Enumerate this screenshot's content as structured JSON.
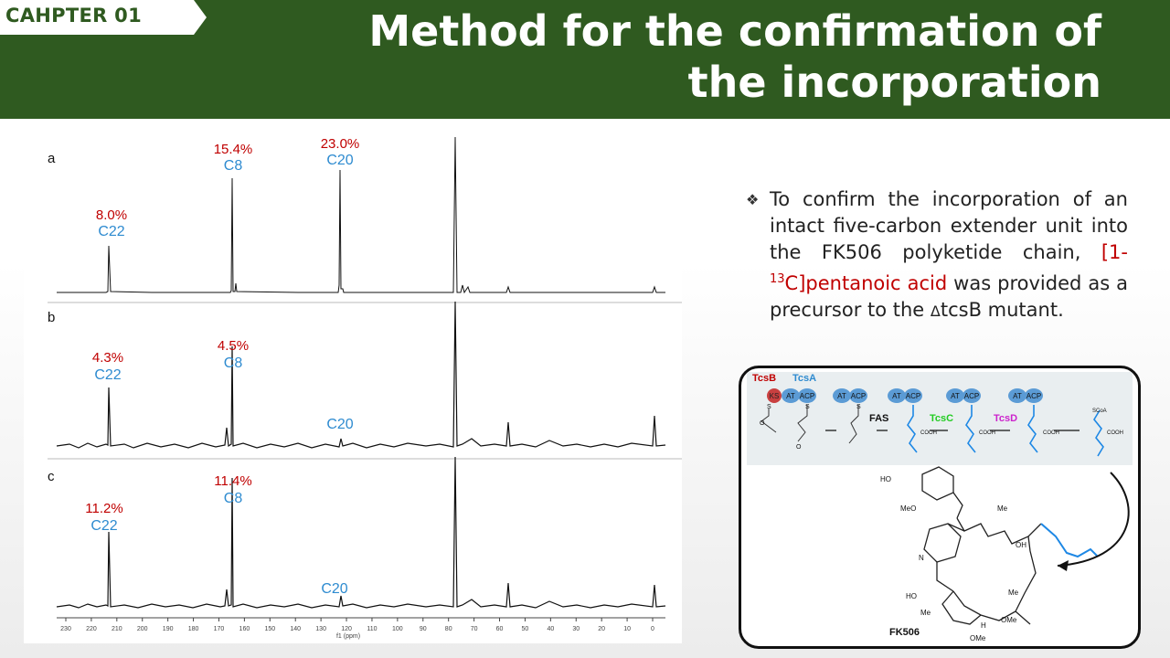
{
  "header": {
    "chapter_label": "CAHPTER 01",
    "title_line1": "Method for the confirmation of",
    "title_line2": "the incorporation",
    "colors": {
      "header_bg": "#2f5a20",
      "title_text": "#ffffff"
    }
  },
  "bullet": {
    "icon": "diamond-bullet-icon",
    "text_before": "To confirm the incorporation of an intact five-carbon extender unit into the FK506 polyketide chain, ",
    "highlight_prefix": "[1-",
    "highlight_sup": "13",
    "highlight_suffix": "C]pentanoic acid",
    "text_after": " was provided as a precursor to the ",
    "delta": "Δ",
    "text_end": "tcsB mutant."
  },
  "spectra": {
    "colors": {
      "percent": "#c00000",
      "carbon": "#2e8bd0",
      "trace": "#111111"
    },
    "axis": {
      "ticks": [
        "230",
        "220",
        "210",
        "200",
        "190",
        "180",
        "170",
        "160",
        "150",
        "140",
        "130",
        "120",
        "110",
        "100",
        "90",
        "80",
        "70",
        "60",
        "50",
        "40",
        "30",
        "20",
        "10",
        "0"
      ],
      "unit": "f1 (ppm)"
    },
    "panels": [
      {
        "letter": "a",
        "labels": [
          {
            "percent": "8.0%",
            "carbon": "C22"
          },
          {
            "percent": "15.4%",
            "carbon": "C8"
          },
          {
            "percent": "23.0%",
            "carbon": "C20"
          }
        ]
      },
      {
        "letter": "b",
        "labels": [
          {
            "percent": "4.3%",
            "carbon": "C22"
          },
          {
            "percent": "4.5%",
            "carbon": "C8"
          },
          {
            "percent": "",
            "carbon": "C20"
          }
        ]
      },
      {
        "letter": "c",
        "labels": [
          {
            "percent": "11.2%",
            "carbon": "C22"
          },
          {
            "percent": "11.4%",
            "carbon": "C8"
          },
          {
            "percent": "",
            "carbon": "C20"
          }
        ]
      }
    ]
  },
  "pathway": {
    "enzymes": {
      "tcsB": "TcsB",
      "tcsA": "TcsA",
      "tcsC": "TcsC",
      "tcsD": "TcsD",
      "fas": "FAS"
    },
    "domains": {
      "ks": "KS",
      "at": "AT",
      "acp": "ACP"
    },
    "chem": {
      "s": "S",
      "o": "O",
      "cooh": "COOH",
      "scoa": "SCoA"
    },
    "colors": {
      "tcsB": "#c00000",
      "tcsA": "#2e8bd0",
      "tcsC": "#22cc22",
      "tcsD": "#cc22cc",
      "domain": "#5b9bd5",
      "ks": "#c94040",
      "highlight_chain": "#1e88e5"
    },
    "molecule": {
      "name": "FK506",
      "ho1": "HO",
      "meo": "MeO",
      "me": "Me",
      "oh": "OH",
      "n": "N",
      "ho2": "HO",
      "h": "H",
      "ome": "OMe"
    }
  }
}
